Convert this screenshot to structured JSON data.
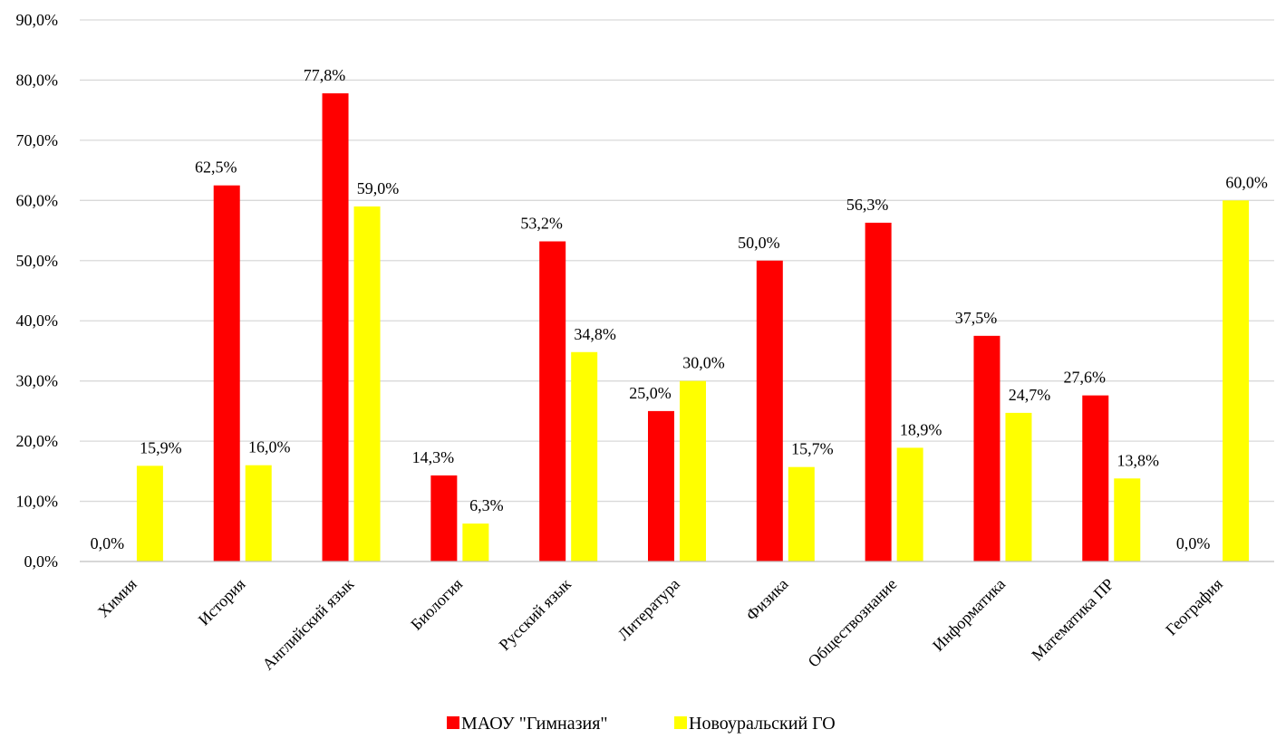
{
  "chart_data": {
    "type": "bar",
    "categories": [
      "Химия",
      "История",
      "Английский язык",
      "Биология",
      "Русский язык",
      "Литература",
      "Физика",
      "Обществознание",
      "Информатика",
      "Математика ПР",
      "География"
    ],
    "series": [
      {
        "name": "МАОУ \"Гимназия\"",
        "color": "#ff0000",
        "values": [
          0.0,
          62.5,
          77.8,
          14.3,
          53.2,
          25.0,
          50.0,
          56.3,
          37.5,
          27.6,
          0.0
        ],
        "labels": [
          "0,0%",
          "62,5%",
          "77,8%",
          "14,3%",
          "53,2%",
          "25,0%",
          "50,0%",
          "56,3%",
          "37,5%",
          "27,6%",
          "0,0%"
        ]
      },
      {
        "name": "Новоуральский ГО",
        "color": "#ffff00",
        "values": [
          15.9,
          16.0,
          59.0,
          6.3,
          34.8,
          30.0,
          15.7,
          18.9,
          24.7,
          13.8,
          60.0
        ],
        "labels": [
          "15,9%",
          "16,0%",
          "59,0%",
          "6,3%",
          "34,8%",
          "30,0%",
          "15,7%",
          "18,9%",
          "24,7%",
          "13,8%",
          "60,0%"
        ]
      }
    ],
    "y_ticks": [
      "0,0%",
      "10,0%",
      "20,0%",
      "30,0%",
      "40,0%",
      "50,0%",
      "60,0%",
      "70,0%",
      "80,0%",
      "90,0%"
    ],
    "ylim": [
      0,
      90
    ],
    "grid": true,
    "legend": "bottom-center"
  }
}
